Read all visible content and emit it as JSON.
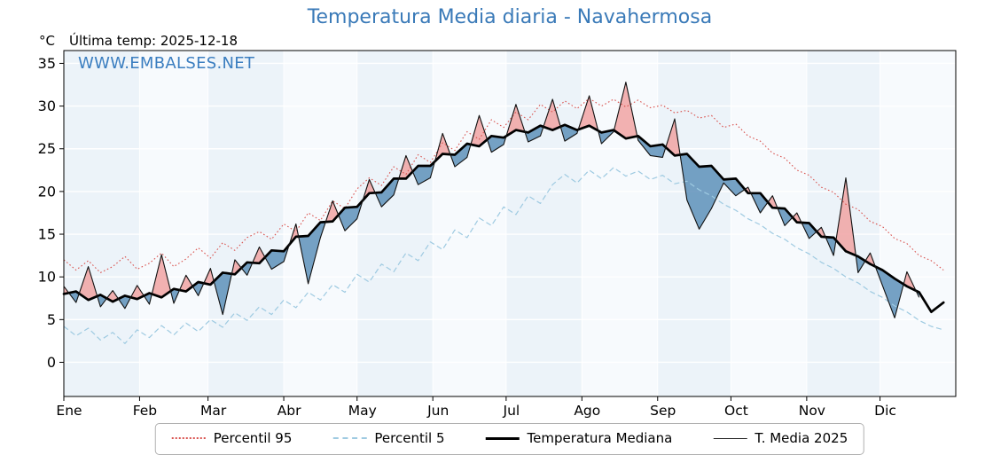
{
  "header": {
    "title": "Temperatura Media diaria - Navahermosa",
    "unit": "°C",
    "last_temp": "Última temp: 2025-12-18",
    "watermark": "WWW.EMBALSES.NET"
  },
  "colors": {
    "title": "#3a7ab8",
    "watermark": "#3b7ec0",
    "p95": "#d9534f",
    "p5": "#9ecae1",
    "median": "#000000",
    "t2025": "#111111",
    "fill_above": "#f1a3a3",
    "fill_below": "#5e90ba",
    "band_a": "#ecf3f9",
    "band_b": "#f7fafd"
  },
  "chart_data": {
    "type": "line",
    "title": "Temperatura Media diaria - Navahermosa",
    "xlabel": "",
    "ylabel": "°C",
    "ylim": [
      -4,
      36.5
    ],
    "grid": true,
    "legend_position": "bottom",
    "x_unit": "day_of_year",
    "y_ticks": [
      0,
      5,
      10,
      15,
      20,
      25,
      30,
      35
    ],
    "x_ticks": {
      "positions": [
        0,
        31,
        59,
        90,
        120,
        151,
        181,
        212,
        243,
        273,
        304,
        334
      ],
      "labels": [
        "Ene",
        "Feb",
        "Mar",
        "Abr",
        "May",
        "Jun",
        "Jul",
        "Ago",
        "Sep",
        "Oct",
        "Nov",
        "Dic"
      ]
    },
    "x_days": [
      0,
      5,
      10,
      15,
      20,
      25,
      30,
      35,
      40,
      45,
      50,
      55,
      60,
      65,
      70,
      75,
      80,
      85,
      90,
      95,
      100,
      105,
      110,
      115,
      120,
      125,
      130,
      135,
      140,
      145,
      150,
      155,
      160,
      165,
      170,
      175,
      180,
      185,
      190,
      195,
      200,
      205,
      210,
      215,
      220,
      225,
      230,
      235,
      240,
      245,
      250,
      255,
      260,
      265,
      270,
      275,
      280,
      285,
      290,
      295,
      300,
      305,
      310,
      315,
      320,
      325,
      330,
      335,
      340,
      345,
      350,
      355,
      360
    ],
    "series": [
      {
        "name": "Percentil 95",
        "style": "dotted",
        "color": "#d9534f",
        "values": [
          12.0,
          10.8,
          11.9,
          10.5,
          11.2,
          12.4,
          10.9,
          11.6,
          12.8,
          11.2,
          12.1,
          13.4,
          12.2,
          14.0,
          13.1,
          14.6,
          15.3,
          14.4,
          16.2,
          15.3,
          17.5,
          16.6,
          18.9,
          18.0,
          20.3,
          21.6,
          20.7,
          22.9,
          22.0,
          24.3,
          23.4,
          25.7,
          24.8,
          27.0,
          26.1,
          28.4,
          27.5,
          29.3,
          28.4,
          30.2,
          29.3,
          30.6,
          29.7,
          30.9,
          30.0,
          30.8,
          29.9,
          30.7,
          29.8,
          30.1,
          29.2,
          29.5,
          28.6,
          28.9,
          27.5,
          27.9,
          26.5,
          25.9,
          24.5,
          23.9,
          22.5,
          21.9,
          20.5,
          19.9,
          18.5,
          17.9,
          16.5,
          15.9,
          14.5,
          13.9,
          12.5,
          11.9,
          10.8
        ]
      },
      {
        "name": "Percentil 5",
        "style": "dashed",
        "color": "#9ecae1",
        "values": [
          4.2,
          3.1,
          4.0,
          2.6,
          3.5,
          2.2,
          3.8,
          2.9,
          4.3,
          3.2,
          4.6,
          3.6,
          5.0,
          4.1,
          5.8,
          4.9,
          6.5,
          5.6,
          7.3,
          6.4,
          8.2,
          7.3,
          9.1,
          8.2,
          10.3,
          9.4,
          11.5,
          10.6,
          12.8,
          11.9,
          14.1,
          13.2,
          15.5,
          14.6,
          16.9,
          16.0,
          18.2,
          17.3,
          19.5,
          18.6,
          20.8,
          22.0,
          21.0,
          22.5,
          21.5,
          22.8,
          21.8,
          22.4,
          21.4,
          21.9,
          20.9,
          21.2,
          20.2,
          19.5,
          18.5,
          17.8,
          16.8,
          16.1,
          15.1,
          14.4,
          13.4,
          12.7,
          11.7,
          11.0,
          10.0,
          9.3,
          8.3,
          7.6,
          6.6,
          5.9,
          4.9,
          4.2,
          3.8
        ]
      },
      {
        "name": "Temperatura Mediana",
        "style": "solid-thick",
        "color": "#000000",
        "values": [
          8.0,
          8.3,
          7.3,
          7.9,
          7.1,
          7.8,
          7.4,
          8.1,
          7.6,
          8.6,
          8.3,
          9.4,
          9.1,
          10.5,
          10.3,
          11.7,
          11.6,
          13.1,
          13.0,
          14.7,
          14.8,
          16.4,
          16.5,
          18.1,
          18.2,
          19.8,
          19.9,
          21.5,
          21.5,
          23.0,
          23.0,
          24.4,
          24.3,
          25.6,
          25.3,
          26.5,
          26.3,
          27.2,
          26.9,
          27.7,
          27.2,
          27.8,
          27.2,
          27.7,
          26.9,
          27.2,
          26.2,
          26.5,
          25.3,
          25.5,
          24.2,
          24.4,
          22.9,
          23.0,
          21.4,
          21.5,
          19.8,
          19.8,
          18.1,
          18.0,
          16.4,
          16.3,
          14.7,
          14.6,
          13.0,
          12.4,
          11.5,
          10.8,
          9.8,
          8.9,
          8.2,
          5.9,
          7.0
        ]
      },
      {
        "name": "T. Media 2025",
        "style": "solid-thin",
        "color": "#111111",
        "values": [
          8.9,
          7.0,
          11.2,
          6.5,
          8.4,
          6.3,
          9.0,
          6.8,
          12.6,
          6.9,
          10.2,
          7.8,
          11.0,
          5.6,
          12.0,
          10.2,
          13.5,
          10.9,
          11.8,
          16.2,
          9.2,
          14.6,
          18.9,
          15.4,
          16.8,
          21.4,
          18.2,
          19.6,
          24.2,
          20.8,
          21.6,
          26.8,
          22.9,
          24.0,
          28.9,
          24.6,
          25.5,
          30.2,
          25.8,
          26.5,
          30.8,
          25.9,
          26.8,
          31.2,
          25.6,
          27.0,
          32.8,
          26.0,
          24.2,
          24.0,
          28.5,
          19.0,
          15.6,
          18.0,
          21.0,
          19.5,
          20.5,
          17.5,
          19.5,
          16.0,
          17.5,
          14.5,
          15.8,
          12.5,
          21.6,
          10.5,
          12.8,
          9.0,
          5.2,
          10.6,
          7.6,
          null,
          null
        ]
      }
    ]
  },
  "legend": {
    "items": [
      "Percentil 95",
      "Percentil 5",
      "Temperatura Mediana",
      "T. Media 2025"
    ]
  }
}
